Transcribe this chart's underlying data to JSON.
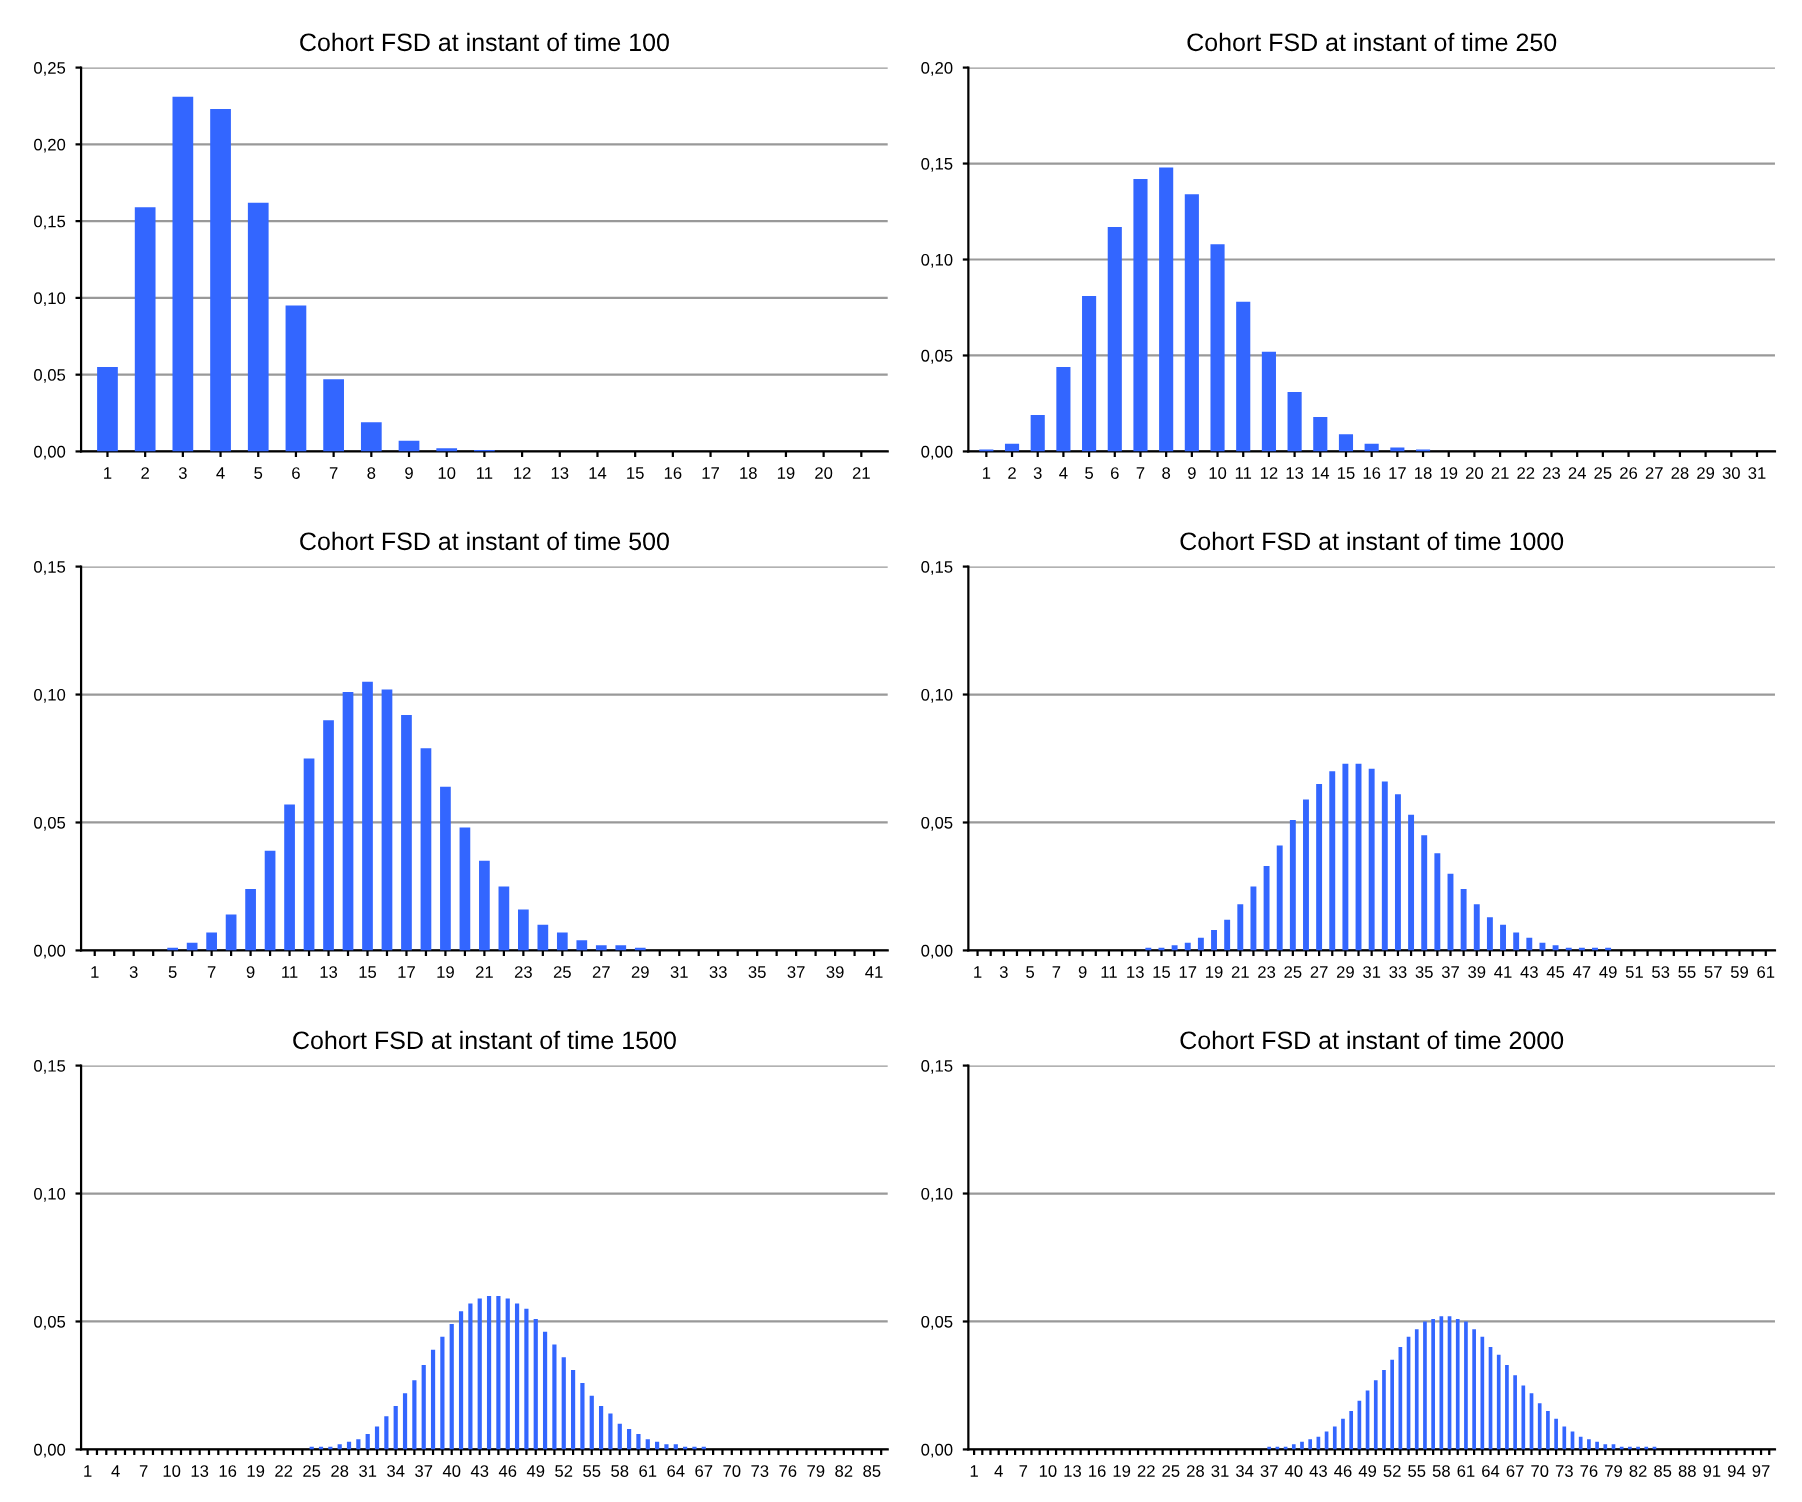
{
  "chart_data": [
    {
      "type": "bar",
      "title": "Cohort FSD at instant of time 100",
      "grid": "y",
      "ylim": [
        0,
        0.25
      ],
      "yticks": [
        {
          "value": 0,
          "label": "0,00"
        },
        {
          "value": 0.05,
          "label": "0,05"
        },
        {
          "value": 0.1,
          "label": "0,10"
        },
        {
          "value": 0.15,
          "label": "0,15"
        },
        {
          "value": 0.2,
          "label": "0,20"
        },
        {
          "value": 0.25,
          "label": "0,25"
        }
      ],
      "categories": [
        "1",
        "2",
        "3",
        "4",
        "5",
        "6",
        "7",
        "8",
        "9",
        "10",
        "11",
        "12",
        "13",
        "14",
        "15",
        "16",
        "17",
        "18",
        "19",
        "20",
        "21"
      ],
      "series": [
        {
          "color": "#3366ff",
          "values": [
            0.055,
            0.159,
            0.231,
            0.223,
            0.162,
            0.095,
            0.047,
            0.019,
            0.007,
            0.002,
            0.001,
            0,
            0,
            0,
            0,
            0,
            0,
            0,
            0,
            0,
            0
          ]
        }
      ]
    },
    {
      "type": "bar",
      "title": "Cohort FSD at instant of time 250",
      "grid": "y",
      "ylim": [
        0,
        0.2
      ],
      "yticks": [
        {
          "value": 0,
          "label": "0,00"
        },
        {
          "value": 0.05,
          "label": "0,05"
        },
        {
          "value": 0.1,
          "label": "0,10"
        },
        {
          "value": 0.15,
          "label": "0,15"
        },
        {
          "value": 0.2,
          "label": "0,20"
        }
      ],
      "categories": [
        "1",
        "2",
        "3",
        "4",
        "5",
        "6",
        "7",
        "8",
        "9",
        "10",
        "11",
        "12",
        "13",
        "14",
        "15",
        "16",
        "17",
        "18",
        "19",
        "20",
        "21",
        "22",
        "23",
        "24",
        "25",
        "26",
        "27",
        "28",
        "29",
        "30",
        "31"
      ],
      "series": [
        {
          "color": "#3366ff",
          "values": [
            0.001,
            0.004,
            0.019,
            0.044,
            0.081,
            0.117,
            0.142,
            0.148,
            0.134,
            0.108,
            0.078,
            0.052,
            0.031,
            0.018,
            0.009,
            0.004,
            0.002,
            0.001,
            0,
            0,
            0,
            0,
            0,
            0,
            0,
            0,
            0,
            0,
            0,
            0,
            0
          ]
        }
      ]
    },
    {
      "type": "bar",
      "title": "Cohort FSD at instant of time 500",
      "grid": "y",
      "ylim": [
        0,
        0.15
      ],
      "yticks": [
        {
          "value": 0,
          "label": "0,00"
        },
        {
          "value": 0.05,
          "label": "0,05"
        },
        {
          "value": 0.1,
          "label": "0,10"
        },
        {
          "value": 0.15,
          "label": "0,15"
        }
      ],
      "categories": [
        "1",
        null,
        "3",
        null,
        "5",
        null,
        "7",
        null,
        "9",
        null,
        "11",
        null,
        "13",
        null,
        "15",
        null,
        "17",
        null,
        "19",
        null,
        "21",
        null,
        "23",
        null,
        "25",
        null,
        "27",
        null,
        "29",
        null,
        "31",
        null,
        "33",
        null,
        "35",
        null,
        "37",
        null,
        "39",
        null,
        "41"
      ],
      "series": [
        {
          "color": "#3366ff",
          "values": [
            0,
            0,
            0,
            0,
            0.001,
            0.003,
            0.007,
            0.014,
            0.024,
            0.039,
            0.057,
            0.075,
            0.09,
            0.101,
            0.105,
            0.102,
            0.092,
            0.079,
            0.064,
            0.048,
            0.035,
            0.025,
            0.016,
            0.01,
            0.007,
            0.004,
            0.002,
            0.002,
            0.001,
            0,
            0,
            0,
            0,
            0,
            0,
            0,
            0,
            0,
            0,
            0,
            0
          ]
        }
      ]
    },
    {
      "type": "bar",
      "title": "Cohort FSD at instant of time 1000",
      "grid": "y",
      "ylim": [
        0,
        0.15
      ],
      "yticks": [
        {
          "value": 0,
          "label": "0,00"
        },
        {
          "value": 0.05,
          "label": "0,05"
        },
        {
          "value": 0.1,
          "label": "0,10"
        },
        {
          "value": 0.15,
          "label": "0,15"
        }
      ],
      "categories": [
        "1",
        null,
        "3",
        null,
        "5",
        null,
        "7",
        null,
        "9",
        null,
        "11",
        null,
        "13",
        null,
        "15",
        null,
        "17",
        null,
        "19",
        null,
        "21",
        null,
        "23",
        null,
        "25",
        null,
        "27",
        null,
        "29",
        null,
        "31",
        null,
        "33",
        null,
        "35",
        null,
        "37",
        null,
        "39",
        null,
        "41",
        null,
        "43",
        null,
        "45",
        null,
        "47",
        null,
        "49",
        null,
        "51",
        null,
        "53",
        null,
        "55",
        null,
        "57",
        null,
        "59",
        null,
        "61"
      ],
      "series": [
        {
          "color": "#3366ff",
          "values": [
            0,
            0,
            0,
            0,
            0,
            0,
            0,
            0,
            0,
            0,
            0,
            0,
            0,
            0.001,
            0.001,
            0.002,
            0.003,
            0.005,
            0.008,
            0.012,
            0.018,
            0.025,
            0.033,
            0.041,
            0.051,
            0.059,
            0.065,
            0.07,
            0.073,
            0.073,
            0.071,
            0.066,
            0.061,
            0.053,
            0.045,
            0.038,
            0.03,
            0.024,
            0.018,
            0.013,
            0.01,
            0.007,
            0.005,
            0.003,
            0.002,
            0.001,
            0.001,
            0.001,
            0.001,
            0,
            0,
            0,
            0,
            0,
            0,
            0,
            0,
            0,
            0,
            0,
            0
          ]
        }
      ]
    },
    {
      "type": "bar",
      "title": "Cohort FSD at instant of time 1500",
      "grid": "y",
      "ylim": [
        0,
        0.15
      ],
      "yticks": [
        {
          "value": 0,
          "label": "0,00"
        },
        {
          "value": 0.05,
          "label": "0,05"
        },
        {
          "value": 0.1,
          "label": "0,10"
        },
        {
          "value": 0.15,
          "label": "0,15"
        }
      ],
      "categories": [
        "1",
        null,
        null,
        "4",
        null,
        null,
        "7",
        null,
        null,
        "10",
        null,
        null,
        "13",
        null,
        null,
        "16",
        null,
        null,
        "19",
        null,
        null,
        "22",
        null,
        null,
        "25",
        null,
        null,
        "28",
        null,
        null,
        "31",
        null,
        null,
        "34",
        null,
        null,
        "37",
        null,
        null,
        "40",
        null,
        null,
        "43",
        null,
        null,
        "46",
        null,
        null,
        "49",
        null,
        null,
        "52",
        null,
        null,
        "55",
        null,
        null,
        "58",
        null,
        null,
        "61",
        null,
        null,
        "64",
        null,
        null,
        "67",
        null,
        null,
        "70",
        null,
        null,
        "73",
        null,
        null,
        "76",
        null,
        null,
        "79",
        null,
        null,
        "82",
        null,
        null,
        "85",
        null
      ],
      "series": [
        {
          "color": "#3366ff",
          "values": [
            0,
            0,
            0,
            0,
            0,
            0,
            0,
            0,
            0,
            0,
            0,
            0,
            0,
            0,
            0,
            0,
            0,
            0,
            0,
            0,
            0,
            0,
            0,
            0,
            0.001,
            0.001,
            0.001,
            0.002,
            0.003,
            0.004,
            0.006,
            0.009,
            0.013,
            0.017,
            0.022,
            0.027,
            0.033,
            0.039,
            0.044,
            0.049,
            0.054,
            0.057,
            0.059,
            0.06,
            0.06,
            0.059,
            0.057,
            0.055,
            0.051,
            0.046,
            0.041,
            0.036,
            0.031,
            0.026,
            0.021,
            0.017,
            0.014,
            0.01,
            0.008,
            0.006,
            0.004,
            0.003,
            0.002,
            0.002,
            0.001,
            0.001,
            0.001,
            0,
            0,
            0,
            0,
            0,
            0,
            0,
            0,
            0,
            0,
            0,
            0,
            0,
            0,
            0,
            0,
            0,
            0,
            0
          ]
        }
      ]
    },
    {
      "type": "bar",
      "title": "Cohort FSD at instant of time 2000",
      "grid": "y",
      "ylim": [
        0,
        0.15
      ],
      "yticks": [
        {
          "value": 0,
          "label": "0,00"
        },
        {
          "value": 0.05,
          "label": "0,05"
        },
        {
          "value": 0.1,
          "label": "0,10"
        },
        {
          "value": 0.15,
          "label": "0,15"
        }
      ],
      "categories": [
        "1",
        null,
        null,
        "4",
        null,
        null,
        "7",
        null,
        null,
        "10",
        null,
        null,
        "13",
        null,
        null,
        "16",
        null,
        null,
        "19",
        null,
        null,
        "22",
        null,
        null,
        "25",
        null,
        null,
        "28",
        null,
        null,
        "31",
        null,
        null,
        "34",
        null,
        null,
        "37",
        null,
        null,
        "40",
        null,
        null,
        "43",
        null,
        null,
        "46",
        null,
        null,
        "49",
        null,
        null,
        "52",
        null,
        null,
        "55",
        null,
        null,
        "58",
        null,
        null,
        "61",
        null,
        null,
        "64",
        null,
        null,
        "67",
        null,
        null,
        "70",
        null,
        null,
        "73",
        null,
        null,
        "76",
        null,
        null,
        "79",
        null,
        null,
        "82",
        null,
        null,
        "85",
        null,
        null,
        "88",
        null,
        null,
        "91",
        null,
        null,
        "94",
        null,
        null,
        "97",
        null
      ],
      "series": [
        {
          "color": "#3366ff",
          "values": [
            0,
            0,
            0,
            0,
            0,
            0,
            0,
            0,
            0,
            0,
            0,
            0,
            0,
            0,
            0,
            0,
            0,
            0,
            0,
            0,
            0,
            0,
            0,
            0,
            0,
            0,
            0,
            0,
            0,
            0,
            0,
            0,
            0,
            0,
            0,
            0,
            0.001,
            0.001,
            0.001,
            0.002,
            0.003,
            0.004,
            0.005,
            0.007,
            0.009,
            0.012,
            0.015,
            0.019,
            0.023,
            0.027,
            0.031,
            0.035,
            0.04,
            0.044,
            0.047,
            0.05,
            0.051,
            0.052,
            0.052,
            0.051,
            0.05,
            0.047,
            0.044,
            0.04,
            0.037,
            0.033,
            0.029,
            0.025,
            0.022,
            0.018,
            0.015,
            0.012,
            0.009,
            0.007,
            0.005,
            0.004,
            0.003,
            0.002,
            0.002,
            0.001,
            0.001,
            0.001,
            0.001,
            0.001,
            0,
            0,
            0,
            0,
            0,
            0,
            0,
            0,
            0,
            0,
            0,
            0,
            0,
            0
          ]
        }
      ]
    }
  ]
}
